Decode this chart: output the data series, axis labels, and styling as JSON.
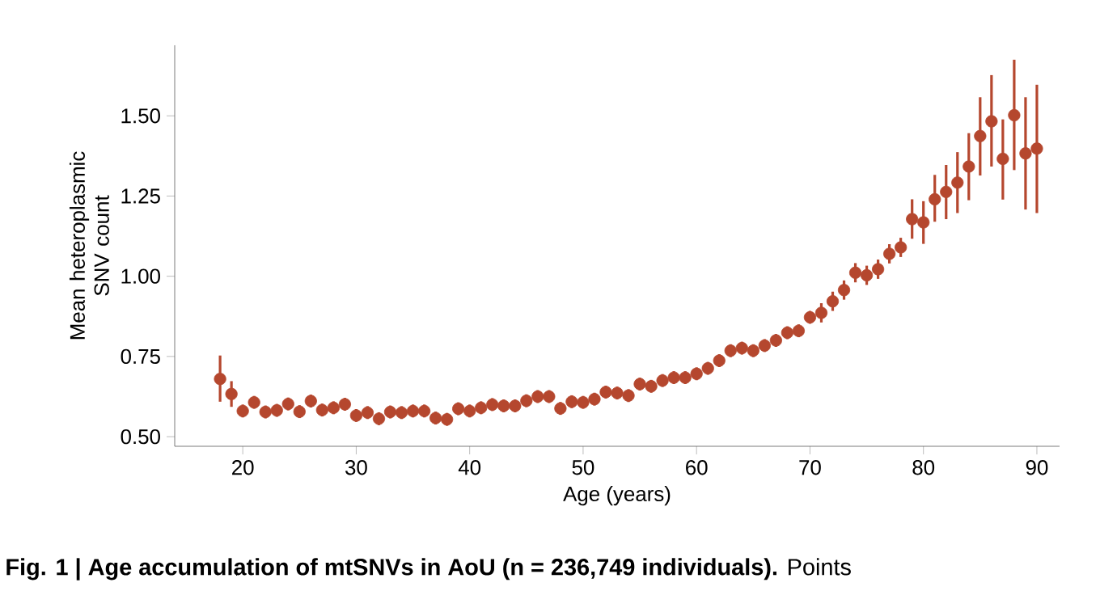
{
  "chart_data": {
    "type": "scatter",
    "xlabel": "Age (years)",
    "ylabel": "Mean heteroplasmic SNV count",
    "x": [
      18,
      19,
      20,
      21,
      22,
      23,
      24,
      25,
      26,
      27,
      28,
      29,
      30,
      31,
      32,
      33,
      34,
      35,
      36,
      37,
      38,
      39,
      40,
      41,
      42,
      43,
      44,
      45,
      46,
      47,
      48,
      49,
      50,
      51,
      52,
      53,
      54,
      55,
      56,
      57,
      58,
      59,
      60,
      61,
      62,
      63,
      64,
      65,
      66,
      67,
      68,
      69,
      70,
      71,
      72,
      73,
      74,
      75,
      76,
      77,
      78,
      79,
      80,
      81,
      82,
      83,
      84,
      85,
      86,
      87,
      88,
      89,
      90
    ],
    "series": [
      {
        "color": "#b5472e",
        "values": [
          0.68,
          0.633,
          0.58,
          0.607,
          0.577,
          0.582,
          0.602,
          0.578,
          0.611,
          0.583,
          0.59,
          0.601,
          0.566,
          0.575,
          0.556,
          0.577,
          0.575,
          0.58,
          0.58,
          0.558,
          0.554,
          0.587,
          0.58,
          0.59,
          0.6,
          0.596,
          0.596,
          0.612,
          0.625,
          0.625,
          0.588,
          0.609,
          0.607,
          0.617,
          0.639,
          0.636,
          0.628,
          0.664,
          0.657,
          0.675,
          0.684,
          0.684,
          0.696,
          0.713,
          0.737,
          0.768,
          0.776,
          0.768,
          0.784,
          0.8,
          0.824,
          0.83,
          0.872,
          0.886,
          0.922,
          0.957,
          1.011,
          1.003,
          1.022,
          1.07,
          1.09,
          1.178,
          1.168,
          1.24,
          1.263,
          1.292,
          1.342,
          1.437,
          1.483,
          1.366,
          1.502,
          1.383,
          1.398
        ],
        "errors": [
          [
            0.609,
            0.753
          ],
          0.04,
          0.02,
          0.02,
          0.02,
          0.02,
          0.02,
          0.02,
          0.02,
          0.02,
          0.02,
          0.02,
          0.02,
          0.02,
          0.02,
          0.02,
          0.02,
          0.02,
          0.02,
          0.02,
          0.02,
          0.02,
          0.02,
          0.02,
          0.02,
          0.02,
          0.02,
          0.02,
          0.02,
          0.02,
          0.02,
          0.02,
          0.02,
          0.02,
          0.02,
          0.02,
          0.02,
          0.02,
          0.02,
          0.02,
          0.02,
          0.02,
          0.02,
          0.02,
          0.02,
          0.02,
          0.02,
          0.02,
          0.02,
          0.02,
          0.02,
          0.02,
          0.02,
          0.03,
          0.03,
          0.03,
          0.03,
          0.03,
          0.03,
          0.03,
          0.03,
          [
            1.117,
            1.24
          ],
          [
            1.101,
            1.234
          ],
          [
            1.17,
            1.316
          ],
          [
            1.178,
            1.347
          ],
          [
            1.197,
            1.387
          ],
          [
            1.237,
            1.446
          ],
          [
            1.314,
            1.558
          ],
          [
            1.342,
            1.627
          ],
          [
            1.239,
            1.489
          ],
          [
            1.331,
            1.675
          ],
          [
            1.208,
            1.558
          ],
          [
            1.197,
            1.597
          ]
        ]
      }
    ],
    "xlim": [
      14,
      92
    ],
    "ylim": [
      0.47,
      1.72
    ],
    "xticks": [
      20,
      30,
      40,
      50,
      60,
      70,
      80,
      90
    ],
    "yticks": [
      {
        "value": 0.5,
        "label": "0.50"
      },
      {
        "value": 0.75,
        "label": "0.75"
      },
      {
        "value": 1.0,
        "label": "1.00"
      },
      {
        "value": 1.25,
        "label": "1.25"
      },
      {
        "value": 1.5,
        "label": "1.50"
      }
    ],
    "marker": "circle",
    "annotations": [
      "**Fig. 1 | Age accumulation of mtSNVs in AoU (n = 236,749 individuals).** Points"
    ]
  }
}
